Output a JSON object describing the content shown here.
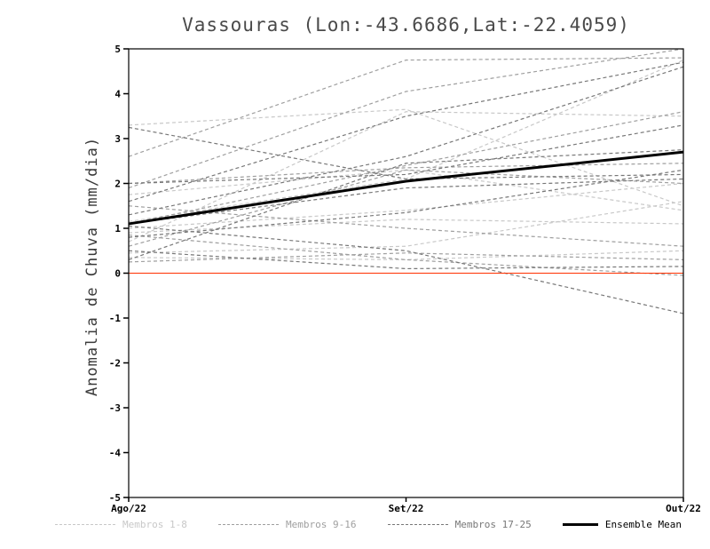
{
  "chart_data": {
    "type": "line",
    "title": "Vassouras (Lon:-43.6686,Lat:-22.4059)",
    "ylabel": "Anomalia de Chuva (mm/dia)",
    "x_categories": [
      "Ago/22",
      "Set/22",
      "Out/22"
    ],
    "ylim": [
      -5,
      5
    ],
    "yticks": [
      -5,
      -4,
      -3,
      -2,
      -1,
      0,
      1,
      2,
      3,
      4,
      5
    ],
    "grid": false,
    "zero_line_color": "#ff3000",
    "groups": [
      {
        "name": "Membros 1-8",
        "color": "#c8c8c8",
        "members": [
          [
            3.3,
            3.65,
            1.5
          ],
          [
            0.7,
            3.6,
            3.5
          ],
          [
            1.0,
            1.4,
            2.0
          ],
          [
            0.45,
            0.6,
            1.6
          ],
          [
            1.15,
            2.1,
            4.75
          ],
          [
            0.35,
            0.3,
            0.5
          ],
          [
            1.75,
            2.3,
            1.4
          ],
          [
            0.9,
            1.2,
            1.1
          ]
        ]
      },
      {
        "name": "Membros 9-16",
        "color": "#9f9f9f",
        "members": [
          [
            1.9,
            4.05,
            5.0
          ],
          [
            1.1,
            2.4,
            3.6
          ],
          [
            0.85,
            0.3,
            -0.05
          ],
          [
            2.0,
            2.35,
            2.45
          ],
          [
            0.6,
            2.3,
            2.0
          ],
          [
            0.25,
            0.45,
            0.3
          ],
          [
            2.6,
            4.75,
            4.8
          ],
          [
            1.5,
            1.0,
            0.6
          ]
        ]
      },
      {
        "name": "Membros 17-25",
        "color": "#777777",
        "members": [
          [
            1.05,
            0.5,
            -0.9
          ],
          [
            3.25,
            2.1,
            2.2
          ],
          [
            1.3,
            2.6,
            4.6
          ],
          [
            0.8,
            1.35,
            2.3
          ],
          [
            2.0,
            2.2,
            3.3
          ],
          [
            0.5,
            0.1,
            0.15
          ],
          [
            1.1,
            1.9,
            2.1
          ],
          [
            1.6,
            3.5,
            4.7
          ],
          [
            0.3,
            2.45,
            2.75
          ]
        ]
      }
    ],
    "ensemble_mean": {
      "name": "Ensemble Mean",
      "color": "#000000",
      "values": [
        1.1,
        2.05,
        2.7
      ]
    },
    "legend": [
      {
        "label": "Membros 1-8",
        "color": "#c8c8c8",
        "style": "dashed"
      },
      {
        "label": "Membros 9-16",
        "color": "#9f9f9f",
        "style": "dashed"
      },
      {
        "label": "Membros 17-25",
        "color": "#777777",
        "style": "dashed"
      },
      {
        "label": "Ensemble Mean",
        "color": "#000000",
        "style": "solid"
      }
    ],
    "legend_position": "bottom"
  }
}
